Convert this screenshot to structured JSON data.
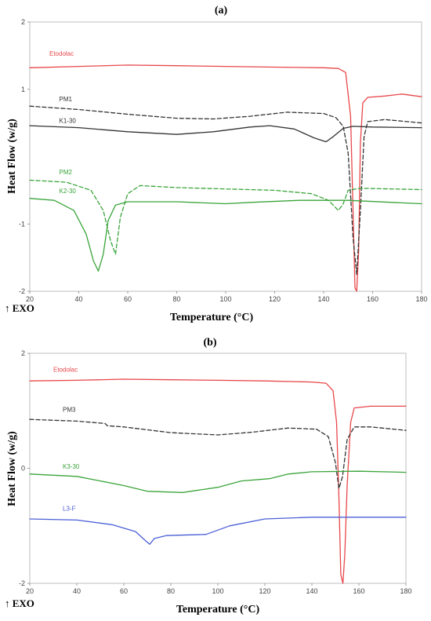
{
  "chart_data": [
    {
      "type": "line",
      "title": "(a)",
      "xlabel": "Temperature (°C)",
      "ylabel": "Heat Flow (w/g)",
      "exo_label": "↑ EXO",
      "xlim": [
        20,
        180
      ],
      "ylim": [
        -2,
        2
      ],
      "xticks": [
        "20",
        "40",
        "60",
        "80",
        "100",
        "120",
        "140",
        "160",
        "180"
      ],
      "yticks": [
        "2",
        "1",
        "-1",
        "-2"
      ],
      "series": [
        {
          "name": "Etodolac",
          "color": "#e8474a",
          "dashed": false,
          "points": [
            [
              20,
              1.32
            ],
            [
              40,
              1.34
            ],
            [
              60,
              1.36
            ],
            [
              80,
              1.35
            ],
            [
              100,
              1.34
            ],
            [
              120,
              1.33
            ],
            [
              140,
              1.32
            ],
            [
              146,
              1.31
            ],
            [
              149,
              1.25
            ],
            [
              151,
              0.6
            ],
            [
              152,
              -0.8
            ],
            [
              152.8,
              -1.95
            ],
            [
              153.5,
              -2.0
            ],
            [
              154.3,
              -1.4
            ],
            [
              155,
              0.2
            ],
            [
              156,
              0.8
            ],
            [
              158,
              0.88
            ],
            [
              165,
              0.9
            ],
            [
              172,
              0.93
            ],
            [
              180,
              0.89
            ]
          ]
        },
        {
          "name": "PM1",
          "color": "#333333",
          "dashed": true,
          "points": [
            [
              20,
              0.75
            ],
            [
              40,
              0.7
            ],
            [
              60,
              0.63
            ],
            [
              80,
              0.57
            ],
            [
              95,
              0.56
            ],
            [
              110,
              0.6
            ],
            [
              125,
              0.66
            ],
            [
              140,
              0.64
            ],
            [
              145,
              0.58
            ],
            [
              148,
              0.45
            ],
            [
              150,
              0.05
            ],
            [
              152,
              -1.2
            ],
            [
              153.5,
              -1.75
            ],
            [
              155,
              -0.8
            ],
            [
              156.5,
              0.3
            ],
            [
              158,
              0.52
            ],
            [
              165,
              0.55
            ],
            [
              180,
              0.5
            ]
          ]
        },
        {
          "name": "K1-30",
          "color": "#333333",
          "dashed": false,
          "points": [
            [
              20,
              0.46
            ],
            [
              40,
              0.43
            ],
            [
              60,
              0.37
            ],
            [
              80,
              0.33
            ],
            [
              95,
              0.37
            ],
            [
              110,
              0.44
            ],
            [
              118,
              0.46
            ],
            [
              128,
              0.41
            ],
            [
              136,
              0.28
            ],
            [
              141,
              0.22
            ],
            [
              144,
              0.3
            ],
            [
              148,
              0.42
            ],
            [
              152,
              0.45
            ],
            [
              160,
              0.44
            ],
            [
              180,
              0.43
            ]
          ]
        },
        {
          "name": "PM2",
          "color": "#3aa43a",
          "dashed": true,
          "points": [
            [
              20,
              -0.35
            ],
            [
              35,
              -0.38
            ],
            [
              45,
              -0.5
            ],
            [
              50,
              -0.8
            ],
            [
              53,
              -1.25
            ],
            [
              55,
              -1.45
            ],
            [
              57,
              -0.9
            ],
            [
              60,
              -0.55
            ],
            [
              65,
              -0.43
            ],
            [
              80,
              -0.46
            ],
            [
              100,
              -0.48
            ],
            [
              120,
              -0.5
            ],
            [
              135,
              -0.55
            ],
            [
              142,
              -0.65
            ],
            [
              146,
              -0.8
            ],
            [
              148,
              -0.7
            ],
            [
              150,
              -0.5
            ],
            [
              155,
              -0.47
            ],
            [
              180,
              -0.49
            ]
          ]
        },
        {
          "name": "K2-30",
          "color": "#3aa43a",
          "dashed": false,
          "points": [
            [
              20,
              -0.62
            ],
            [
              30,
              -0.65
            ],
            [
              38,
              -0.8
            ],
            [
              43,
              -1.15
            ],
            [
              46,
              -1.55
            ],
            [
              48,
              -1.7
            ],
            [
              50,
              -1.45
            ],
            [
              52,
              -0.95
            ],
            [
              55,
              -0.72
            ],
            [
              60,
              -0.67
            ],
            [
              80,
              -0.67
            ],
            [
              100,
              -0.7
            ],
            [
              110,
              -0.68
            ],
            [
              130,
              -0.65
            ],
            [
              150,
              -0.65
            ],
            [
              180,
              -0.7
            ]
          ]
        }
      ]
    },
    {
      "type": "line",
      "title": "(b)",
      "xlabel": "Temperature (°C)",
      "ylabel": "Heat Flow (w/g)",
      "exo_label": "↑ EXO",
      "xlim": [
        20,
        180
      ],
      "ylim": [
        -2,
        2
      ],
      "xticks": [
        "20",
        "40",
        "60",
        "80",
        "100",
        "120",
        "140",
        "160",
        "180"
      ],
      "yticks": [
        "2",
        "0",
        "-2"
      ],
      "series": [
        {
          "name": "Etodolac",
          "color": "#e8474a",
          "dashed": false,
          "points": [
            [
              20,
              1.52
            ],
            [
              40,
              1.53
            ],
            [
              60,
              1.55
            ],
            [
              80,
              1.54
            ],
            [
              100,
              1.53
            ],
            [
              120,
              1.52
            ],
            [
              140,
              1.5
            ],
            [
              146,
              1.48
            ],
            [
              149,
              1.35
            ],
            [
              150.5,
              0.8
            ],
            [
              151.5,
              -0.5
            ],
            [
              152.3,
              -1.85
            ],
            [
              153.2,
              -2.0
            ],
            [
              154,
              -1.5
            ],
            [
              155,
              -0.3
            ],
            [
              156.5,
              0.8
            ],
            [
              158,
              1.05
            ],
            [
              165,
              1.08
            ],
            [
              180,
              1.08
            ]
          ]
        },
        {
          "name": "PM3",
          "color": "#333333",
          "dashed": true,
          "points": [
            [
              20,
              0.85
            ],
            [
              40,
              0.82
            ],
            [
              52,
              0.78
            ],
            [
              53,
              0.74
            ],
            [
              60,
              0.72
            ],
            [
              80,
              0.62
            ],
            [
              100,
              0.58
            ],
            [
              115,
              0.63
            ],
            [
              130,
              0.7
            ],
            [
              142,
              0.68
            ],
            [
              147,
              0.55
            ],
            [
              150,
              0.1
            ],
            [
              151.5,
              -0.35
            ],
            [
              153,
              -0.15
            ],
            [
              155,
              0.5
            ],
            [
              158,
              0.72
            ],
            [
              165,
              0.72
            ],
            [
              180,
              0.66
            ]
          ]
        },
        {
          "name": "K3-30",
          "color": "#3aa43a",
          "dashed": false,
          "points": [
            [
              20,
              -0.1
            ],
            [
              40,
              -0.14
            ],
            [
              60,
              -0.3
            ],
            [
              70,
              -0.4
            ],
            [
              85,
              -0.42
            ],
            [
              100,
              -0.33
            ],
            [
              110,
              -0.22
            ],
            [
              122,
              -0.18
            ],
            [
              130,
              -0.1
            ],
            [
              140,
              -0.06
            ],
            [
              160,
              -0.05
            ],
            [
              180,
              -0.07
            ]
          ]
        },
        {
          "name": "L3-F",
          "color": "#4a5fd6",
          "dashed": false,
          "points": [
            [
              20,
              -0.88
            ],
            [
              40,
              -0.9
            ],
            [
              55,
              -0.98
            ],
            [
              65,
              -1.1
            ],
            [
              69,
              -1.25
            ],
            [
              71,
              -1.32
            ],
            [
              73,
              -1.22
            ],
            [
              78,
              -1.17
            ],
            [
              95,
              -1.15
            ],
            [
              105,
              -1.0
            ],
            [
              120,
              -0.88
            ],
            [
              140,
              -0.85
            ],
            [
              160,
              -0.85
            ],
            [
              180,
              -0.85
            ]
          ]
        }
      ]
    }
  ]
}
